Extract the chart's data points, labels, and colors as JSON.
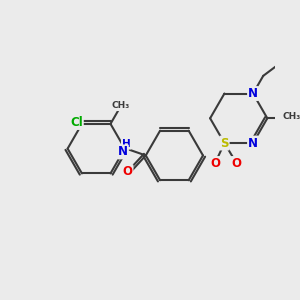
{
  "bg_color": "#ebebeb",
  "bond_color": "#3a3a3a",
  "atom_colors": {
    "N": "#0000dd",
    "O": "#ee0000",
    "S": "#bbbb00",
    "Cl": "#00aa00",
    "H": "#3a3a3a",
    "C": "#3a3a3a"
  },
  "bond_lw": 1.5,
  "font_size": 8.5,
  "small_font": 7.5
}
